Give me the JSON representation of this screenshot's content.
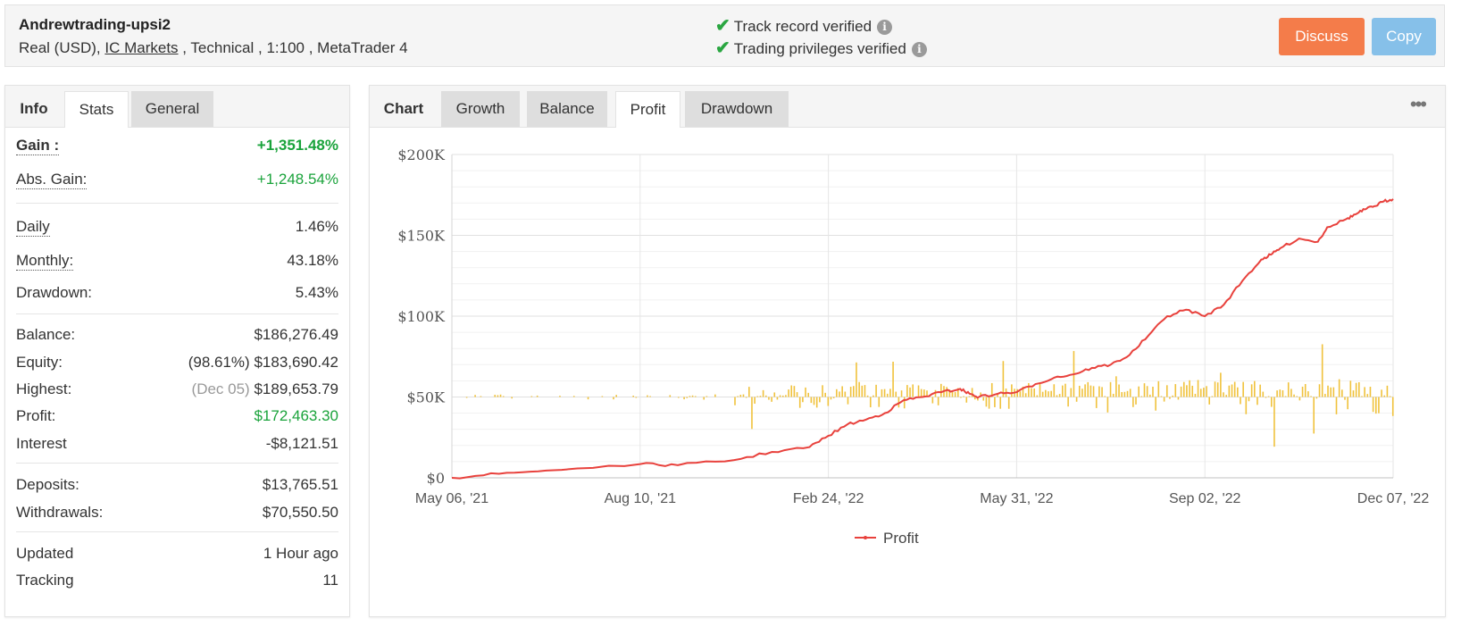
{
  "header": {
    "account_name": "Andrewtrading-upsi2",
    "account_prefix": "Real (USD),",
    "broker": "IC Markets",
    "account_suffix": ", Technical , 1:100 , MetaTrader 4",
    "verify1": "Track record verified",
    "verify2": "Trading privileges verified",
    "discuss_label": "Discuss",
    "copy_label": "Copy"
  },
  "stats_tabs": [
    "Info",
    "Stats",
    "General"
  ],
  "stats": {
    "gain": {
      "label": "Gain :",
      "value": "+1,351.48%"
    },
    "abs_gain": {
      "label": "Abs. Gain:",
      "value": "+1,248.54%"
    },
    "daily": {
      "label": "Daily",
      "value": "1.46%"
    },
    "monthly": {
      "label": "Monthly:",
      "value": "43.18%"
    },
    "drawdown": {
      "label": "Drawdown:",
      "value": "5.43%"
    },
    "balance": {
      "label": "Balance:",
      "value": "$186,276.49"
    },
    "equity": {
      "label": "Equity:",
      "prefix": "(98.61%)",
      "value": "$183,690.42"
    },
    "highest": {
      "label": "Highest:",
      "prefix": "(Dec 05)",
      "value": "$189,653.79"
    },
    "profit": {
      "label": "Profit:",
      "value": "$172,463.30"
    },
    "interest": {
      "label": "Interest",
      "value": "-$8,121.51"
    },
    "deposits": {
      "label": "Deposits:",
      "value": "$13,765.51"
    },
    "withdrawals": {
      "label": "Withdrawals:",
      "value": "$70,550.50"
    },
    "updated": {
      "label": "Updated",
      "value": "1 Hour ago"
    },
    "tracking": {
      "label": "Tracking",
      "value": "11"
    }
  },
  "chart_tabs": [
    "Chart",
    "Growth",
    "Balance",
    "Profit",
    "Drawdown"
  ],
  "chart_data": {
    "type": "line",
    "ylim": [
      0,
      200000
    ],
    "y_ticks": [
      "$0",
      "$50K",
      "$100K",
      "$150K",
      "$200K"
    ],
    "x_tick_labels": [
      "May 06, '21",
      "Aug 10, '21",
      "Feb 24, '22",
      "May 31, '22",
      "Sep 02, '22",
      "Dec 07, '22"
    ],
    "legend": "Profit",
    "legend_position": "bottom-center",
    "grid": true,
    "series": [
      {
        "name": "Profit",
        "color": "#e8413c",
        "x": [
          0,
          0.05,
          0.1,
          0.2,
          0.24,
          0.3,
          0.34,
          0.38,
          0.4,
          0.42,
          0.44,
          0.46,
          0.48,
          0.5,
          0.52,
          0.54,
          0.55,
          0.56,
          0.58,
          0.6,
          0.62,
          0.64,
          0.66,
          0.68,
          0.7,
          0.72,
          0.74,
          0.76,
          0.78,
          0.8,
          0.82,
          0.84,
          0.86,
          0.87,
          0.88,
          0.9,
          0.92,
          0.93,
          0.95,
          0.96,
          0.97,
          0.98,
          0.99,
          1.0
        ],
        "values": [
          0,
          2500,
          4500,
          8500,
          7800,
          11000,
          16000,
          19000,
          26000,
          33000,
          36000,
          40000,
          48000,
          50000,
          53000,
          55000,
          52000,
          50000,
          52000,
          53000,
          58000,
          62000,
          64000,
          68000,
          70000,
          76000,
          88000,
          100000,
          104000,
          100000,
          107000,
          122000,
          135000,
          138000,
          142000,
          148000,
          146000,
          155000,
          160000,
          163000,
          166000,
          168000,
          171000,
          172500
        ]
      }
    ],
    "bars_color": "#f0c23c",
    "bars_baseline": 50000
  }
}
